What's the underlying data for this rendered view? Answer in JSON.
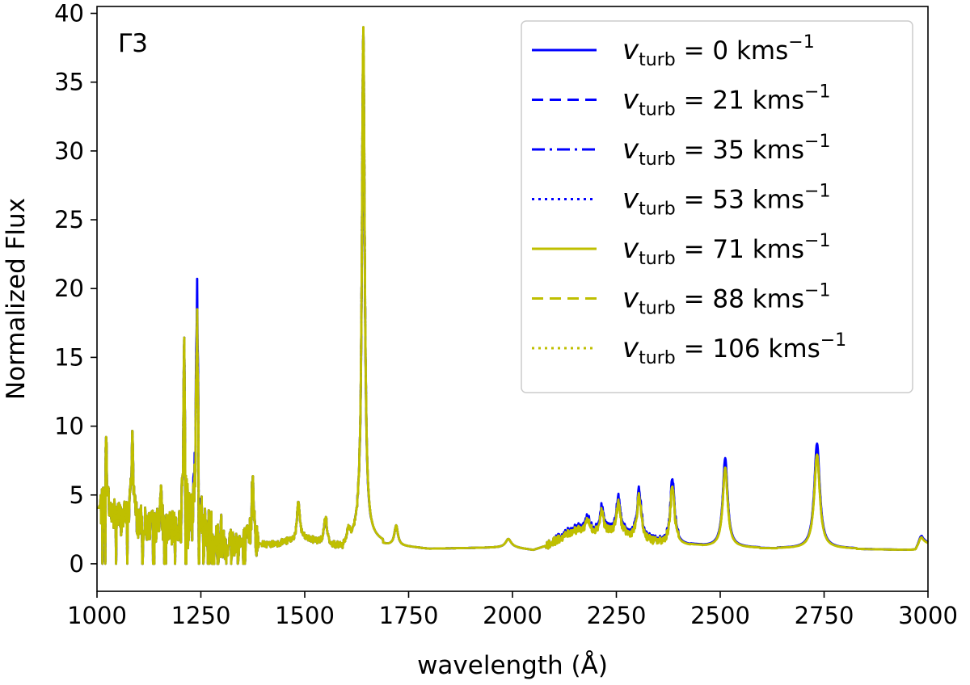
{
  "chart_data": {
    "type": "line",
    "title": "",
    "xlabel": "wavelength (Å)",
    "ylabel": "Normalized Flux",
    "annotation": "Γ3",
    "xlim": [
      1000,
      3000
    ],
    "ylim": [
      -2,
      40.5
    ],
    "xticks": [
      "1000",
      "1250",
      "1500",
      "1750",
      "2000",
      "2250",
      "2500",
      "2750",
      "3000"
    ],
    "yticks": [
      "0",
      "5",
      "10",
      "15",
      "20",
      "25",
      "30",
      "35",
      "40"
    ],
    "grid": false,
    "legend_position": "top-right",
    "colors": {
      "blue": "#0000ff",
      "olive": "#bfbf00"
    },
    "series": [
      {
        "name": "v_turb = 0 kms⁻¹",
        "legend_main": "v",
        "legend_sub": "turb",
        "legend_value": " = 0 kms",
        "legend_sup": "−1",
        "color": "#0000ff",
        "style": "solid",
        "key_points": {
          "x": [
            1240,
            1640,
            1650,
            2180,
            2215,
            2255,
            2305,
            2385,
            2510,
            2730
          ],
          "y": [
            18.5,
            37.5,
            30.0,
            3.4,
            4.0,
            4.5,
            5.1,
            5.9,
            7.3,
            8.3
          ]
        }
      },
      {
        "name": "v_turb = 21 kms⁻¹",
        "legend_main": "v",
        "legend_sub": "turb",
        "legend_value": " = 21 kms",
        "legend_sup": "−1",
        "color": "#0000ff",
        "style": "dashed"
      },
      {
        "name": "v_turb = 35 kms⁻¹",
        "legend_main": "v",
        "legend_sub": "turb",
        "legend_value": " = 35 kms",
        "legend_sup": "−1",
        "color": "#0000ff",
        "style": "dashdot"
      },
      {
        "name": "v_turb = 53 kms⁻¹",
        "legend_main": "v",
        "legend_sub": "turb",
        "legend_value": " = 53 kms",
        "legend_sup": "−1",
        "color": "#0000ff",
        "style": "dotted"
      },
      {
        "name": "v_turb = 71 kms⁻¹",
        "legend_main": "v",
        "legend_sub": "turb",
        "legend_value": " = 71 kms",
        "legend_sup": "−1",
        "color": "#bfbf00",
        "style": "solid"
      },
      {
        "name": "v_turb = 88 kms⁻¹",
        "legend_main": "v",
        "legend_sub": "turb",
        "legend_value": " = 88 kms",
        "legend_sup": "−1",
        "color": "#bfbf00",
        "style": "dashed"
      },
      {
        "name": "v_turb = 106 kms⁻¹",
        "legend_main": "v",
        "legend_sub": "turb",
        "legend_value": " = 106 kms",
        "legend_sup": "−1",
        "color": "#bfbf00",
        "style": "dotted",
        "key_points": {
          "x": [
            1210,
            1240,
            1640,
            1650,
            2180,
            2215,
            2255,
            2305,
            2385,
            2510,
            2730
          ],
          "y": [
            15.8,
            16.2,
            39.0,
            30.0,
            2.9,
            3.5,
            3.9,
            4.5,
            5.2,
            6.5,
            7.6
          ]
        }
      }
    ],
    "spectrum_profile": {
      "continuum": [
        [
          1000,
          4.0
        ],
        [
          1100,
          3.0
        ],
        [
          1390,
          1.3
        ],
        [
          1500,
          1.8
        ],
        [
          1600,
          1.2
        ],
        [
          1630,
          2.0
        ],
        [
          1700,
          1.4
        ],
        [
          1800,
          1.1
        ],
        [
          2000,
          1.2
        ],
        [
          2050,
          1.0
        ],
        [
          2080,
          1.3
        ],
        [
          2150,
          2.5
        ],
        [
          2250,
          2.2
        ],
        [
          2350,
          1.5
        ],
        [
          2500,
          1.2
        ],
        [
          2700,
          1.1
        ],
        [
          2800,
          1.1
        ],
        [
          2970,
          1.0
        ],
        [
          2985,
          1.7
        ],
        [
          3000,
          1.5
        ]
      ],
      "features": [
        {
          "x": 1022,
          "height": 8.4,
          "width": 3
        },
        {
          "x": 1085,
          "height": 9.5,
          "width": 3
        },
        {
          "x": 1153,
          "height": 5.0,
          "width": 3
        },
        {
          "x": 1210,
          "height": 15.8,
          "width": 2.5
        },
        {
          "x": 1241,
          "height": 18.5,
          "width": 3
        },
        {
          "x": 1375,
          "height": 7.0,
          "width": 3
        },
        {
          "x": 1485,
          "height": 4.5,
          "width": 4
        },
        {
          "x": 1550,
          "height": 3.5,
          "width": 4
        },
        {
          "x": 1605,
          "height": 2.4,
          "width": 3
        },
        {
          "x": 1641,
          "height": 39.0,
          "width": 4
        },
        {
          "x": 1720,
          "height": 2.8,
          "width": 5
        },
        {
          "x": 1990,
          "height": 1.8,
          "width": 8
        },
        {
          "x": 2180,
          "height": 3.4,
          "width": 5
        },
        {
          "x": 2215,
          "height": 4.0,
          "width": 5
        },
        {
          "x": 2255,
          "height": 4.5,
          "width": 6
        },
        {
          "x": 2305,
          "height": 5.1,
          "width": 6
        },
        {
          "x": 2385,
          "height": 5.9,
          "width": 6
        },
        {
          "x": 2512,
          "height": 7.3,
          "width": 7
        },
        {
          "x": 2733,
          "height": 8.3,
          "width": 8
        },
        {
          "x": 2982,
          "height": 1.9,
          "width": 6
        }
      ]
    }
  }
}
